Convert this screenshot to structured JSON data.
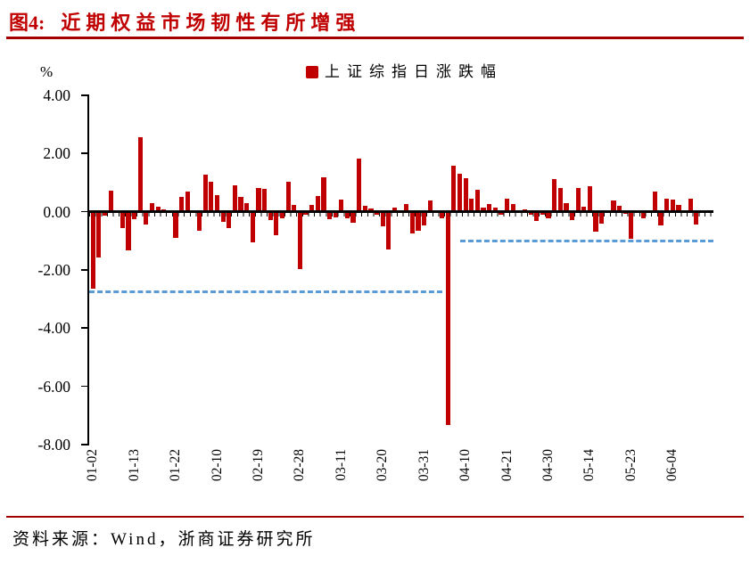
{
  "figure": {
    "label": "图4:",
    "title": "近期权益市场韧性有所增强"
  },
  "legend": {
    "label": "上证综指日涨跌幅",
    "marker_color": "#C00000"
  },
  "source": {
    "text": "资料来源：Wind，浙商证券研究所"
  },
  "colors": {
    "bar": "#C00000",
    "title": "#C00000",
    "rule": "#A50000",
    "reference_line": "#5B9BD5",
    "axis": "#000000"
  },
  "chart_data": {
    "type": "bar",
    "title": "上证综指日涨跌幅",
    "unit": "%",
    "ylabel": "%",
    "xlabel": "",
    "ylim": [
      -8,
      4
    ],
    "grid": false,
    "legend_position": "top-center",
    "y_ticks": [
      4,
      2,
      0,
      -2,
      -4,
      -6,
      -8
    ],
    "y_tick_labels": [
      "4.00",
      "2.00",
      "0.00",
      "-2.00",
      "-4.00",
      "-6.00",
      "-8.00"
    ],
    "x_tick_every": 7,
    "x_tick_labels": [
      "01-02",
      "01-13",
      "01-22",
      "02-10",
      "02-19",
      "02-28",
      "03-11",
      "03-20",
      "03-31",
      "04-10",
      "04-21",
      "04-30",
      "05-14",
      "05-23",
      "06-04"
    ],
    "categories": [
      "01-02",
      "01-03",
      "01-06",
      "01-07",
      "01-08",
      "01-09",
      "01-10",
      "01-13",
      "01-14",
      "01-15",
      "01-16",
      "01-17",
      "01-20",
      "01-21",
      "01-22",
      "01-23",
      "01-24",
      "01-27",
      "02-05",
      "02-06",
      "02-07",
      "02-10",
      "02-11",
      "02-12",
      "02-13",
      "02-14",
      "02-17",
      "02-18",
      "02-19",
      "02-20",
      "02-21",
      "02-24",
      "02-25",
      "02-26",
      "02-27",
      "02-28",
      "03-03",
      "03-04",
      "03-05",
      "03-06",
      "03-07",
      "03-10",
      "03-11",
      "03-12",
      "03-13",
      "03-14",
      "03-17",
      "03-18",
      "03-19",
      "03-20",
      "03-21",
      "03-24",
      "03-25",
      "03-26",
      "03-27",
      "03-28",
      "03-31",
      "04-01",
      "04-02",
      "04-03",
      "04-07",
      "04-08",
      "04-09",
      "04-10",
      "04-11",
      "04-14",
      "04-15",
      "04-16",
      "04-17",
      "04-18",
      "04-21",
      "04-22",
      "04-23",
      "04-24",
      "04-25",
      "04-28",
      "04-29",
      "04-30",
      "05-06",
      "05-07",
      "05-08",
      "05-09",
      "05-12",
      "05-13",
      "05-14",
      "05-15",
      "05-16",
      "05-19",
      "05-20",
      "05-21",
      "05-22",
      "05-23",
      "05-26",
      "05-27",
      "05-28",
      "05-29",
      "05-30",
      "06-03",
      "06-04",
      "06-05",
      "06-06",
      "06-09",
      "06-10"
    ],
    "values": [
      -2.66,
      -1.57,
      -0.14,
      0.71,
      0.02,
      -0.58,
      -1.33,
      -0.25,
      2.54,
      -0.43,
      0.28,
      0.18,
      0.08,
      -0.05,
      -0.89,
      0.51,
      0.7,
      -0.06,
      -0.65,
      1.27,
      1.01,
      0.56,
      -0.35,
      -0.58,
      0.9,
      0.49,
      0.29,
      -1.07,
      0.81,
      0.78,
      -0.28,
      -0.81,
      -0.22,
      1.02,
      0.23,
      -1.98,
      -0.12,
      0.22,
      0.53,
      1.17,
      -0.25,
      -0.19,
      0.41,
      -0.23,
      -0.39,
      1.81,
      0.19,
      0.11,
      -0.1,
      -0.51,
      -1.29,
      0.15,
      -0.05,
      0.25,
      -0.76,
      -0.67,
      -0.46,
      0.38,
      0.05,
      -0.24,
      -7.34,
      1.58,
      1.31,
      1.16,
      0.45,
      0.76,
      0.15,
      0.26,
      0.13,
      -0.11,
      0.45,
      0.25,
      0.05,
      0.08,
      -0.1,
      -0.32,
      -0.1,
      -0.23,
      1.13,
      0.8,
      0.28,
      -0.28,
      0.82,
      0.17,
      0.86,
      -0.68,
      -0.4,
      0.0,
      0.38,
      0.21,
      -0.08,
      -0.94,
      -0.05,
      -0.24,
      -0.02,
      0.7,
      -0.47,
      0.43,
      0.42,
      0.23,
      0.04,
      0.43,
      -0.44
    ],
    "series_name": "上证综指日涨跌幅",
    "reference_lines": [
      {
        "value": -2.74,
        "from_category": "01-02",
        "to_category": "04-03",
        "style": "dashed",
        "color": "#5B9BD5"
      },
      {
        "value": -1.02,
        "from_category": "04-09",
        "to_category": null,
        "style": "dashed",
        "color": "#5B9BD5"
      }
    ]
  }
}
